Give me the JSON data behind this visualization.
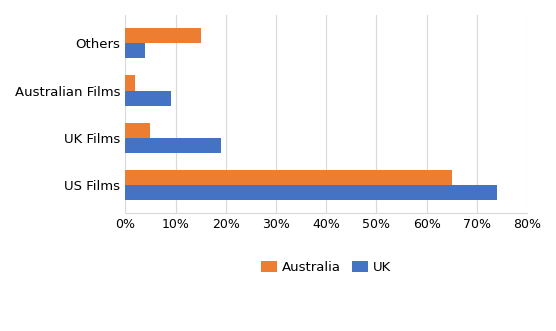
{
  "categories": [
    "US Films",
    "UK Films",
    "Australian Films",
    "Others"
  ],
  "australia": [
    65,
    5,
    2,
    15
  ],
  "uk": [
    74,
    19,
    9,
    4
  ],
  "australia_color": "#ED7D31",
  "uk_color": "#4472C4",
  "xlim": [
    0,
    80
  ],
  "xticks": [
    0,
    10,
    20,
    30,
    40,
    50,
    60,
    70,
    80
  ],
  "bar_height": 0.32,
  "background_color": "#FFFFFF",
  "legend_labels": [
    "Australia",
    "UK"
  ],
  "grid_color": "#D9D9D9",
  "label_fontsize": 9.5,
  "tick_fontsize": 9
}
